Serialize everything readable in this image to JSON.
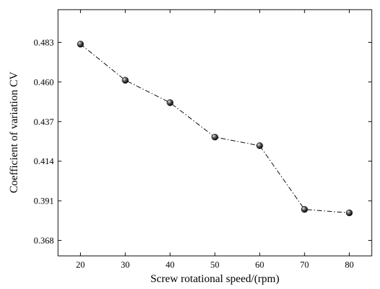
{
  "chart_data": {
    "type": "line",
    "title": "",
    "xlabel": "Screw rotational speed/(rpm)",
    "ylabel": "Coefficient of variation CV",
    "x": [
      20,
      30,
      40,
      50,
      60,
      70,
      80
    ],
    "series": [
      {
        "values": [
          0.482,
          0.461,
          0.448,
          0.428,
          0.423,
          0.386,
          0.384
        ],
        "color": "#000000",
        "line_style": "dash-dot",
        "marker": "sphere"
      }
    ],
    "xlim": [
      15,
      85
    ],
    "ylim": [
      0.359,
      0.502
    ],
    "xticks": [
      20,
      30,
      40,
      50,
      60,
      70,
      80
    ],
    "yticks": [
      0.368,
      0.391,
      0.414,
      0.437,
      0.46,
      0.483
    ],
    "ytick_labels": [
      "0.368",
      "0.391",
      "0.414",
      "0.437",
      "0.460",
      "0.483"
    ],
    "grid": false,
    "legend": "none"
  }
}
